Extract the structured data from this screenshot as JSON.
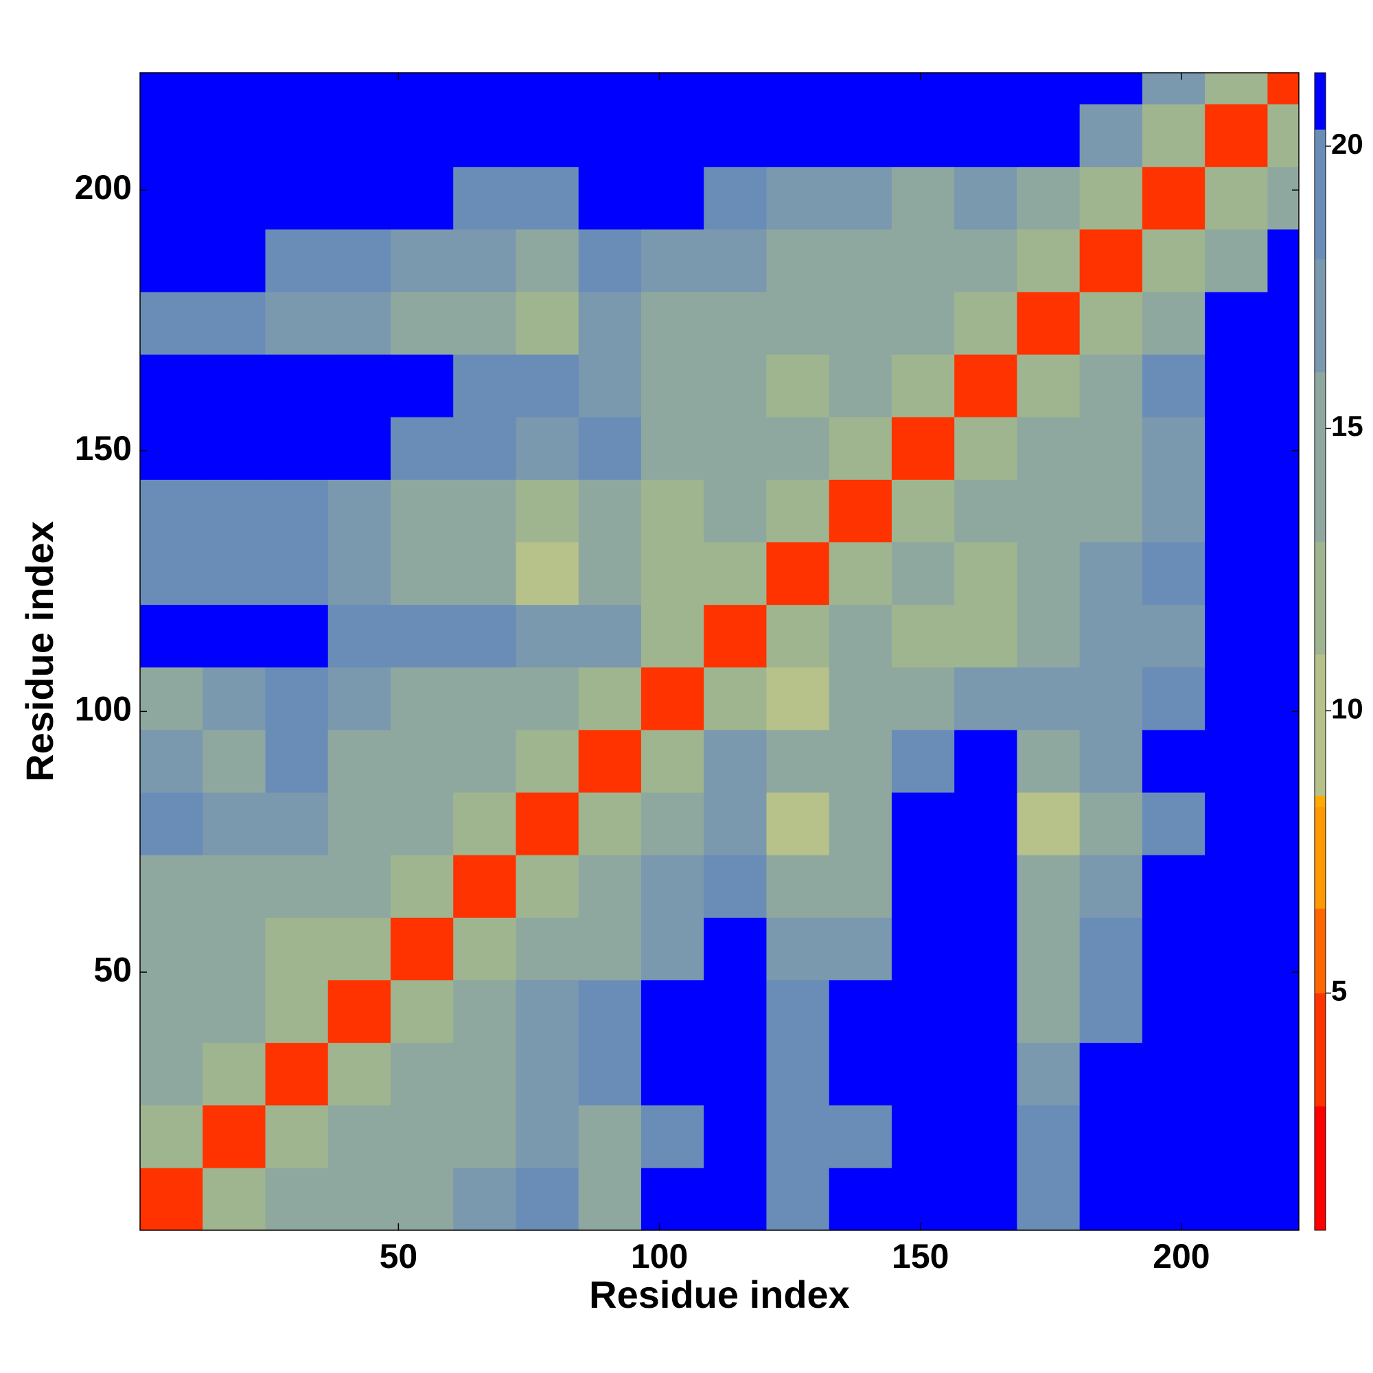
{
  "chart_data": {
    "type": "heatmap",
    "xlabel": "Residue index",
    "ylabel": "Residue index",
    "xbins": [
      0.5,
      12.5,
      24.5,
      36.5,
      48.5,
      60.5,
      72.5,
      84.5,
      96.5,
      108.5,
      120.5,
      132.5,
      144.5,
      156.5,
      168.5,
      180.5,
      192.5,
      204.5,
      216.5,
      222.5
    ],
    "ybins": [
      0.5,
      12.5,
      24.5,
      36.5,
      48.5,
      60.5,
      72.5,
      84.5,
      96.5,
      108.5,
      120.5,
      132.5,
      144.5,
      156.5,
      168.5,
      180.5,
      192.5,
      204.5,
      216.5,
      222.5
    ],
    "xlim": [
      0.5,
      222.5
    ],
    "ylim": [
      0.5,
      222.5
    ],
    "xticks": [
      50,
      100,
      150,
      200
    ],
    "yticks": [
      50,
      100,
      150,
      200
    ],
    "values": [
      [
        4,
        11,
        13,
        15,
        15,
        16,
        18,
        15,
        21,
        21,
        19,
        21,
        21,
        21,
        19,
        21,
        21,
        21,
        21
      ],
      [
        11,
        4,
        11,
        14,
        14,
        15,
        17,
        15,
        19,
        21,
        18,
        20,
        21,
        21,
        18,
        21,
        21,
        21,
        21
      ],
      [
        13,
        11,
        4,
        11,
        13,
        14,
        17,
        19,
        21,
        21,
        18,
        21,
        21,
        21,
        17,
        21,
        21,
        21,
        21
      ],
      [
        15,
        14,
        11,
        4,
        11,
        14,
        16,
        18,
        21,
        21,
        18,
        21,
        21,
        21,
        15,
        19,
        21,
        21,
        21
      ],
      [
        14,
        14,
        12,
        11,
        4,
        11,
        13,
        14,
        16,
        21,
        16,
        17,
        21,
        21,
        15,
        18,
        21,
        21,
        21
      ],
      [
        14,
        15,
        14,
        15,
        11,
        4,
        11,
        13,
        16,
        19,
        14,
        15,
        21,
        21,
        13,
        17,
        21,
        21,
        21
      ],
      [
        18,
        17,
        16,
        15,
        13,
        11,
        4,
        11,
        14,
        17,
        10,
        14,
        21,
        21,
        10,
        15,
        18,
        21,
        21
      ],
      [
        17,
        15,
        18,
        15,
        13,
        13,
        11,
        4,
        11,
        16,
        13,
        14,
        19,
        21,
        15,
        16,
        21,
        21,
        21
      ],
      [
        15,
        16,
        19,
        17,
        15,
        14,
        14,
        11,
        4,
        11,
        9,
        13,
        15,
        16,
        16,
        17,
        19,
        21,
        21
      ],
      [
        21,
        21,
        21,
        19,
        18,
        18,
        16,
        16,
        11,
        4,
        11,
        13,
        12,
        12,
        14,
        16,
        17,
        21,
        21
      ],
      [
        19,
        18,
        19,
        17,
        14,
        13,
        10,
        13,
        12,
        11,
        4,
        11,
        13,
        11,
        14,
        17,
        19,
        21,
        21
      ],
      [
        20,
        18,
        19,
        17,
        15,
        14,
        12,
        14,
        12,
        13,
        11,
        4,
        11,
        13,
        14,
        15,
        17,
        21,
        21
      ],
      [
        21,
        21,
        21,
        21,
        18,
        18,
        17,
        19,
        14,
        14,
        13,
        11,
        4,
        11,
        13,
        15,
        16,
        21,
        21
      ],
      [
        21,
        21,
        21,
        21,
        21,
        19,
        18,
        16,
        13,
        13,
        12,
        13,
        11,
        4,
        11,
        14,
        18,
        21,
        21
      ],
      [
        19,
        18,
        17,
        17,
        15,
        15,
        11,
        16,
        14,
        15,
        15,
        14,
        14,
        11,
        4,
        11,
        15,
        21,
        21
      ],
      [
        21,
        21,
        19,
        18,
        17,
        16,
        15,
        18,
        17,
        16,
        15,
        15,
        15,
        14,
        11,
        4,
        11,
        14,
        21
      ],
      [
        21,
        21,
        21,
        21,
        21,
        19,
        18,
        21,
        21,
        19,
        17,
        16,
        15,
        16,
        15,
        11,
        4,
        11,
        15
      ],
      [
        21,
        21,
        21,
        21,
        21,
        21,
        21,
        21,
        21,
        21,
        21,
        21,
        21,
        21,
        21,
        17,
        11,
        4,
        11
      ],
      [
        21,
        21,
        21,
        21,
        21,
        21,
        21,
        21,
        21,
        21,
        21,
        21,
        21,
        21,
        21,
        21,
        16,
        11,
        4
      ]
    ],
    "colorscale": [
      {
        "value": 0.8,
        "color": "#ff0000"
      },
      {
        "value": 3,
        "color": "#ff3300"
      },
      {
        "value": 5,
        "color": "#ff6600"
      },
      {
        "value": 6.5,
        "color": "#ff9900"
      },
      {
        "value": 8.3,
        "color": "#ffaa00"
      },
      {
        "value": 8.5,
        "color": "#b7c28a"
      },
      {
        "value": 11,
        "color": "#9fb58f"
      },
      {
        "value": 13,
        "color": "#8fa89f"
      },
      {
        "value": 16,
        "color": "#7a98ae"
      },
      {
        "value": 18,
        "color": "#6a8db8"
      },
      {
        "value": 20.3,
        "color": "#0000ff"
      }
    ],
    "clim": [
      0.8,
      21.3
    ],
    "cticks": [
      5,
      10,
      15,
      20
    ]
  }
}
